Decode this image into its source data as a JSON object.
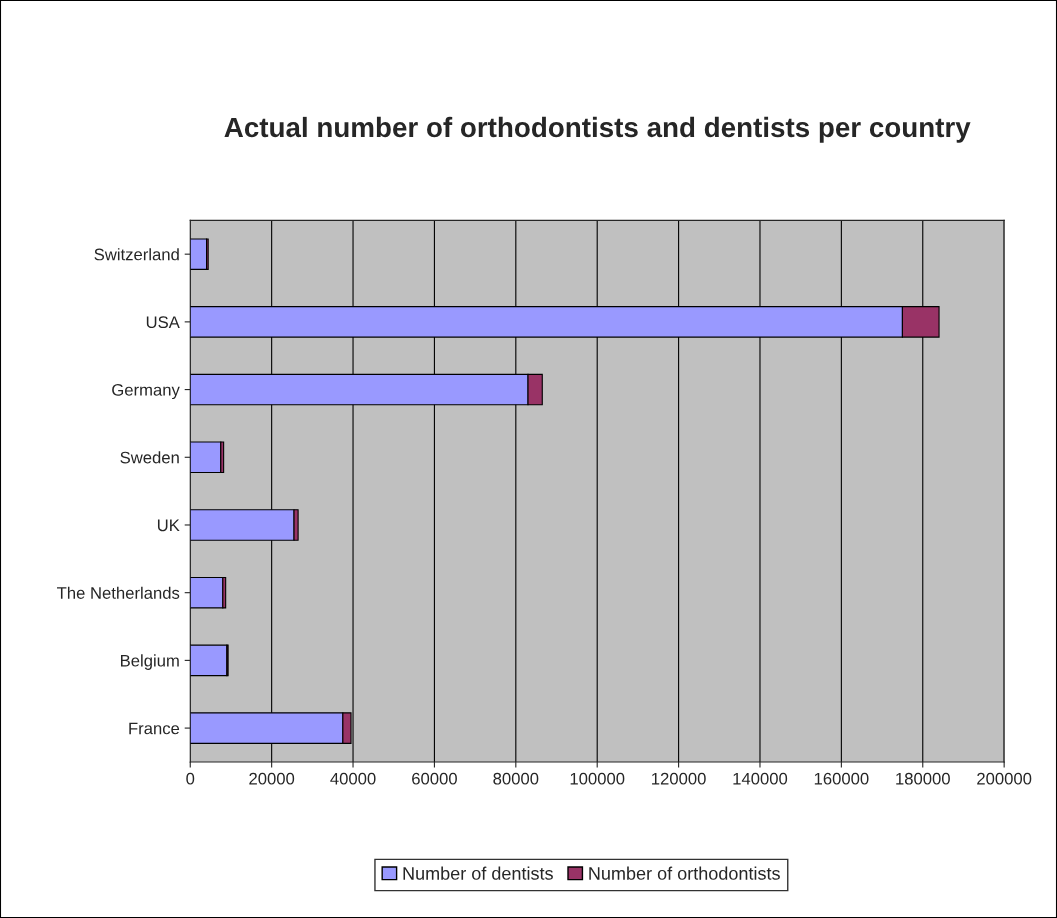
{
  "chart_data": {
    "type": "bar",
    "title": "Actual number of orthodontists and dentists per country",
    "orientation": "horizontal",
    "stacked": true,
    "categories": [
      "Switzerland",
      "USA",
      "Germany",
      "Sweden",
      "UK",
      "The Netherlands",
      "Belgium",
      "France"
    ],
    "series": [
      {
        "name": "Number of dentists",
        "color": "#9999ff",
        "values": [
          4000,
          175000,
          83000,
          7500,
          25500,
          8000,
          9000,
          37500
        ]
      },
      {
        "name": "Number of orthodontists",
        "color": "#993366",
        "values": [
          400,
          9000,
          3500,
          700,
          1000,
          700,
          300,
          2000
        ]
      }
    ],
    "xlim": [
      0,
      200000
    ],
    "xticks": [
      0,
      20000,
      40000,
      60000,
      80000,
      100000,
      120000,
      140000,
      160000,
      180000,
      200000
    ],
    "grid": "x",
    "legend": "bottom"
  }
}
